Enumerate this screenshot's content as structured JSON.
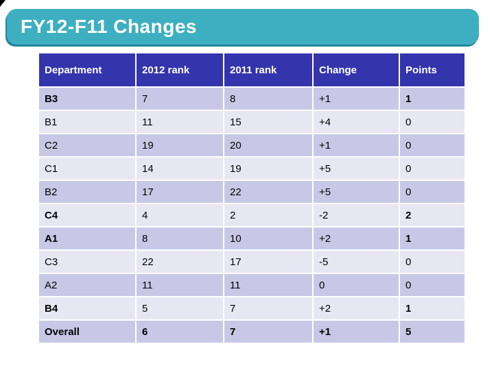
{
  "title": "FY12-F11 Changes",
  "colors": {
    "title_bar_bg": "#3EAFC0",
    "title_bar_edge": "#22869B",
    "header_bg": "#3434AC",
    "header_text": "#FFFFFF",
    "row_dark": "#C8C8E6",
    "row_light": "#E7E7F4",
    "body_text": "#000000"
  },
  "table": {
    "columns": [
      "Department",
      "2012 rank",
      "2011 rank",
      "Change",
      "Points"
    ],
    "rows": [
      {
        "cells": [
          "B3",
          "7",
          "8",
          "+1",
          "1"
        ],
        "bold": [
          true,
          false,
          false,
          false,
          true
        ]
      },
      {
        "cells": [
          "B1",
          "11",
          "15",
          "+4",
          "0"
        ],
        "bold": [
          false,
          false,
          false,
          false,
          false
        ]
      },
      {
        "cells": [
          "C2",
          "19",
          "20",
          "+1",
          "0"
        ],
        "bold": [
          false,
          false,
          false,
          false,
          false
        ]
      },
      {
        "cells": [
          "C1",
          "14",
          "19",
          "+5",
          "0"
        ],
        "bold": [
          false,
          false,
          false,
          false,
          false
        ]
      },
      {
        "cells": [
          "B2",
          "17",
          "22",
          "+5",
          "0"
        ],
        "bold": [
          false,
          false,
          false,
          false,
          false
        ]
      },
      {
        "cells": [
          "C4",
          "4",
          "2",
          "-2",
          "2"
        ],
        "bold": [
          true,
          false,
          false,
          false,
          true
        ]
      },
      {
        "cells": [
          "A1",
          "8",
          "10",
          "+2",
          "1"
        ],
        "bold": [
          true,
          false,
          false,
          false,
          true
        ]
      },
      {
        "cells": [
          "C3",
          "22",
          "17",
          "-5",
          "0"
        ],
        "bold": [
          false,
          false,
          false,
          false,
          false
        ]
      },
      {
        "cells": [
          "A2",
          "11",
          "11",
          "0",
          "0"
        ],
        "bold": [
          false,
          false,
          false,
          false,
          false
        ]
      },
      {
        "cells": [
          "B4",
          "5",
          "7",
          "+2",
          "1"
        ],
        "bold": [
          true,
          false,
          false,
          false,
          true
        ]
      },
      {
        "cells": [
          "Overall",
          "6",
          "7",
          "+1",
          "5"
        ],
        "bold": [
          true,
          true,
          true,
          true,
          true
        ]
      }
    ]
  }
}
